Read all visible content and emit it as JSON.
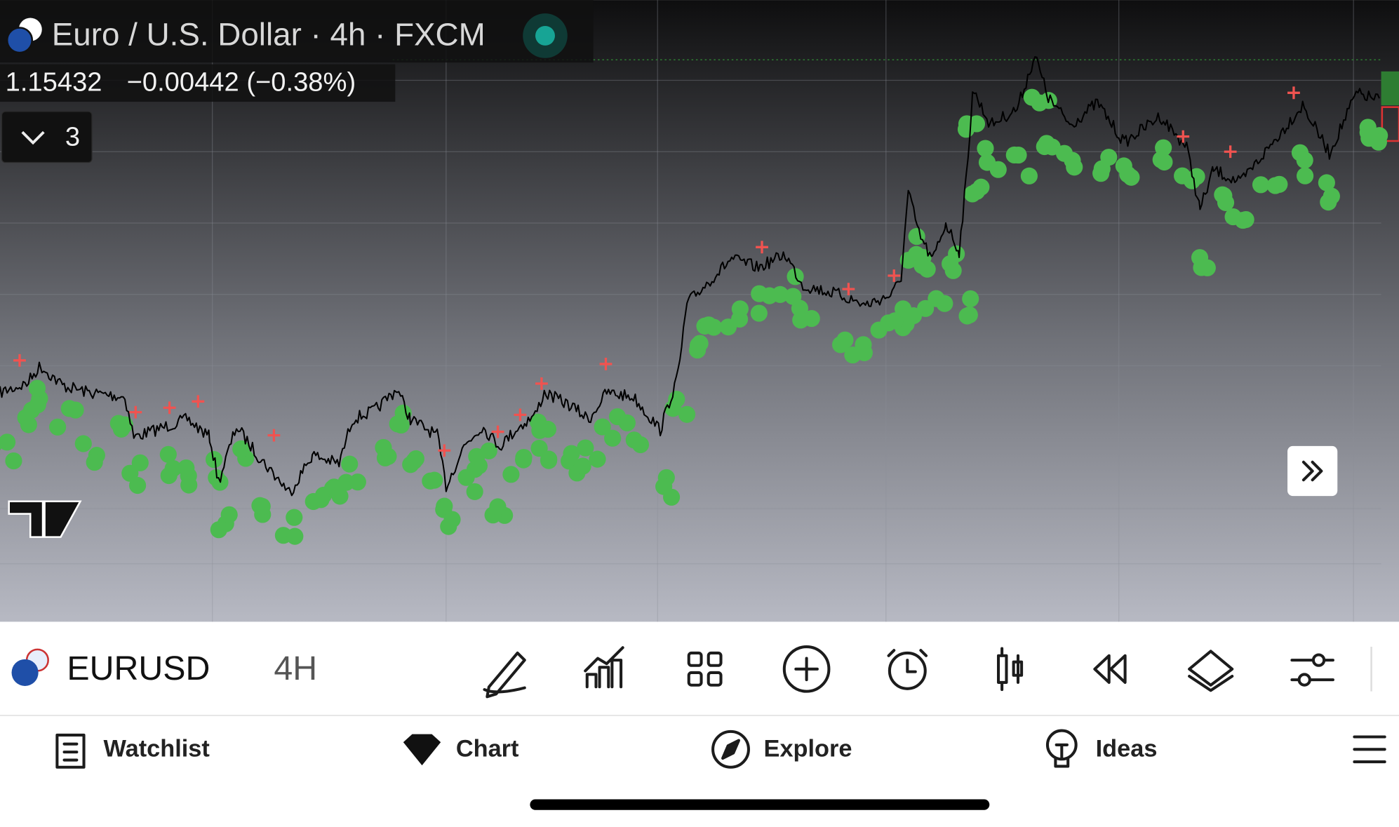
{
  "header": {
    "title": "Euro / U.S. Dollar · 4h · FXCM",
    "price": "1.15432",
    "change": "−0.00442 (−0.38%)",
    "indicators_count": "3"
  },
  "toolbar": {
    "symbol": "EURUSD",
    "interval": "4H"
  },
  "nav": {
    "items": [
      "Watchlist",
      "Chart",
      "Explore",
      "Ideas"
    ]
  }
}
